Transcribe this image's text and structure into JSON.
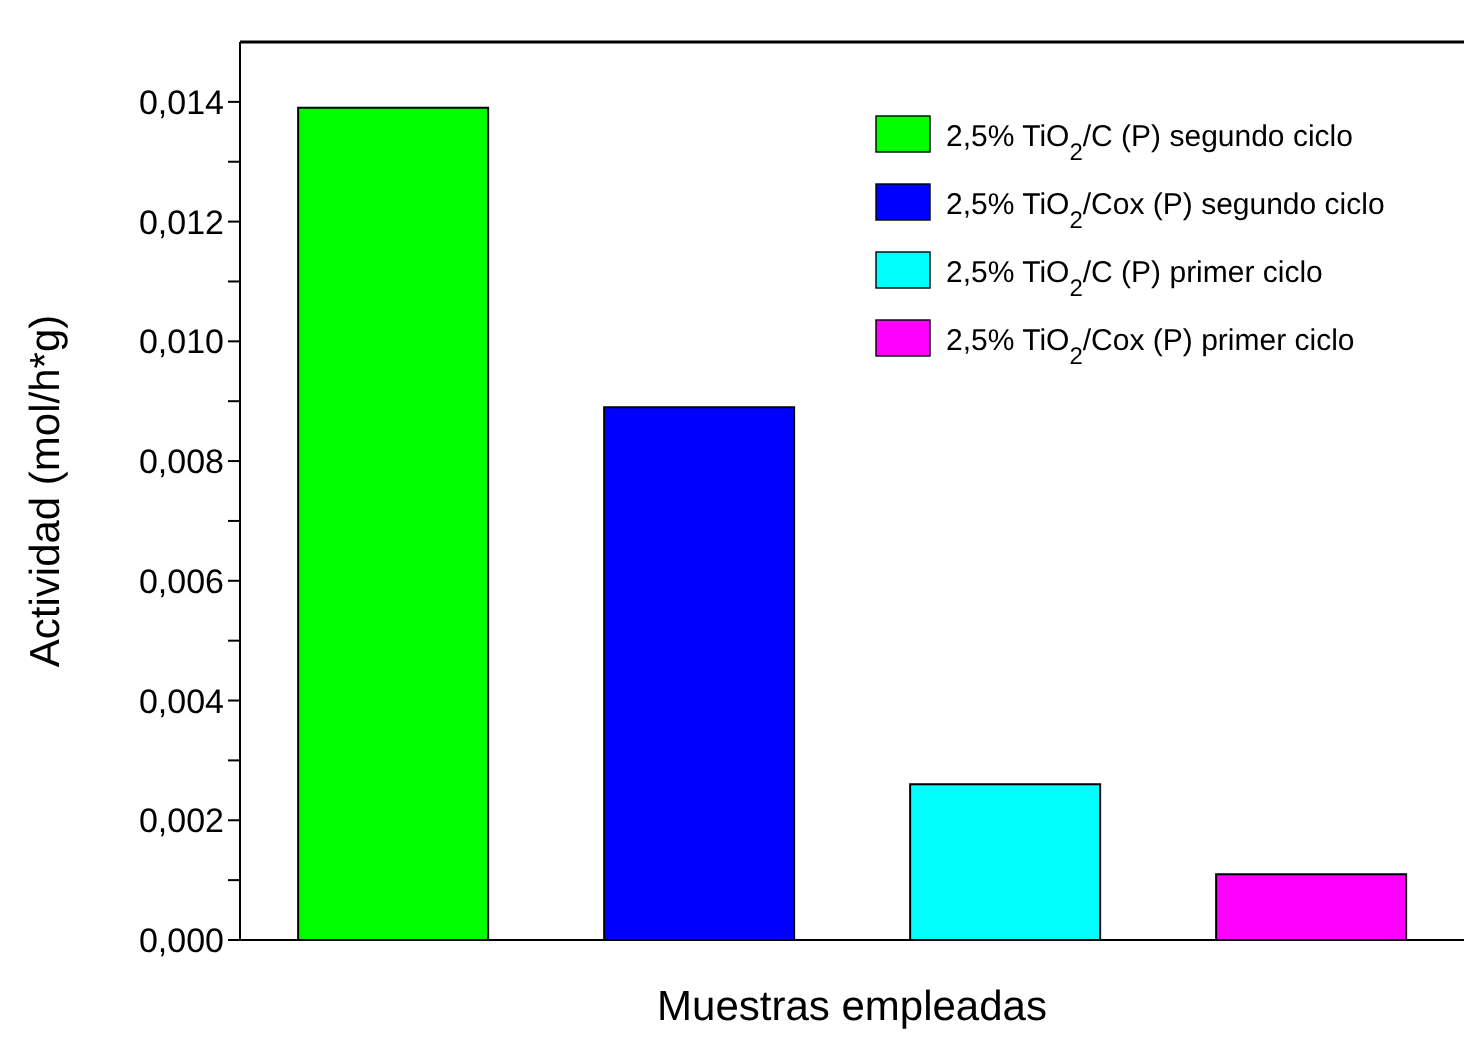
{
  "chart_data": {
    "type": "bar",
    "xlabel": "Muestras empleadas",
    "ylabel": "Actividad (mol/h*g)",
    "categories": [
      null,
      null,
      null,
      null
    ],
    "series": [
      {
        "name": "2,5% TiO$_{2}$/C (P) segundo ciclo",
        "color": "#00ff00",
        "values": [
          0.0139,
          null,
          null,
          null
        ]
      },
      {
        "name": "2,5% TiO$_{2}$/Cox (P) segundo ciclo",
        "color": "#0000ff",
        "values": [
          null,
          0.0089,
          null,
          null
        ]
      },
      {
        "name": "2,5% TiO$_{2}$/C (P) primer ciclo",
        "color": "#00ffff",
        "values": [
          null,
          null,
          0.0026,
          null
        ]
      },
      {
        "name": "2,5% TiO$_{2}$/Cox (P) primer ciclo",
        "color": "#ff00ff",
        "values": [
          null,
          null,
          null,
          0.0011
        ]
      }
    ],
    "ylim": [
      0,
      0.015
    ],
    "yticks": [
      {
        "value": 0,
        "label": "0,000"
      },
      {
        "value": 0.001,
        "label": null
      },
      {
        "value": 0.002,
        "label": "0,002"
      },
      {
        "value": 0.003,
        "label": null
      },
      {
        "value": 0.004,
        "label": "0,004"
      },
      {
        "value": 0.005,
        "label": null
      },
      {
        "value": 0.006,
        "label": "0,006"
      },
      {
        "value": 0.007,
        "label": null
      },
      {
        "value": 0.008,
        "label": "0,008"
      },
      {
        "value": 0.009,
        "label": null
      },
      {
        "value": 0.01,
        "label": "0,010"
      },
      {
        "value": 0.011,
        "label": null
      },
      {
        "value": 0.012,
        "label": "0,012"
      },
      {
        "value": 0.013,
        "label": null
      },
      {
        "value": 0.014,
        "label": "0,014"
      }
    ],
    "legend": "top right",
    "grid": false
  }
}
